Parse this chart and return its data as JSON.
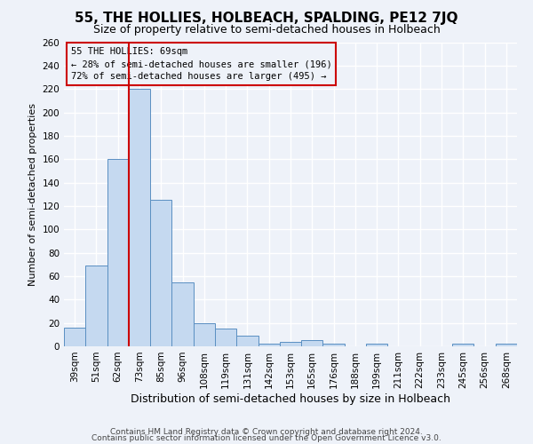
{
  "title": "55, THE HOLLIES, HOLBEACH, SPALDING, PE12 7JQ",
  "subtitle": "Size of property relative to semi-detached houses in Holbeach",
  "xlabel": "Distribution of semi-detached houses by size in Holbeach",
  "ylabel": "Number of semi-detached properties",
  "categories": [
    "39sqm",
    "51sqm",
    "62sqm",
    "73sqm",
    "85sqm",
    "96sqm",
    "108sqm",
    "119sqm",
    "131sqm",
    "142sqm",
    "153sqm",
    "165sqm",
    "176sqm",
    "188sqm",
    "199sqm",
    "211sqm",
    "222sqm",
    "233sqm",
    "245sqm",
    "256sqm",
    "268sqm"
  ],
  "values": [
    16,
    69,
    160,
    220,
    125,
    55,
    20,
    15,
    9,
    2,
    4,
    5,
    2,
    0,
    2,
    0,
    0,
    0,
    2,
    0,
    2
  ],
  "bar_color": "#c5d9f0",
  "bar_edge_color": "#5a8fc2",
  "vline_color": "#cc0000",
  "ylim": [
    0,
    260
  ],
  "yticks": [
    0,
    20,
    40,
    60,
    80,
    100,
    120,
    140,
    160,
    180,
    200,
    220,
    240,
    260
  ],
  "annotation_title": "55 THE HOLLIES: 69sqm",
  "annotation_line1": "← 28% of semi-detached houses are smaller (196)",
  "annotation_line2": "72% of semi-detached houses are larger (495) →",
  "annotation_box_edge": "#cc0000",
  "footer_line1": "Contains HM Land Registry data © Crown copyright and database right 2024.",
  "footer_line2": "Contains public sector information licensed under the Open Government Licence v3.0.",
  "background_color": "#eef2f9",
  "grid_color": "#ffffff",
  "title_fontsize": 11,
  "subtitle_fontsize": 9,
  "xlabel_fontsize": 9,
  "ylabel_fontsize": 8,
  "tick_fontsize": 7.5,
  "footer_fontsize": 6.5,
  "annot_fontsize": 7.5
}
